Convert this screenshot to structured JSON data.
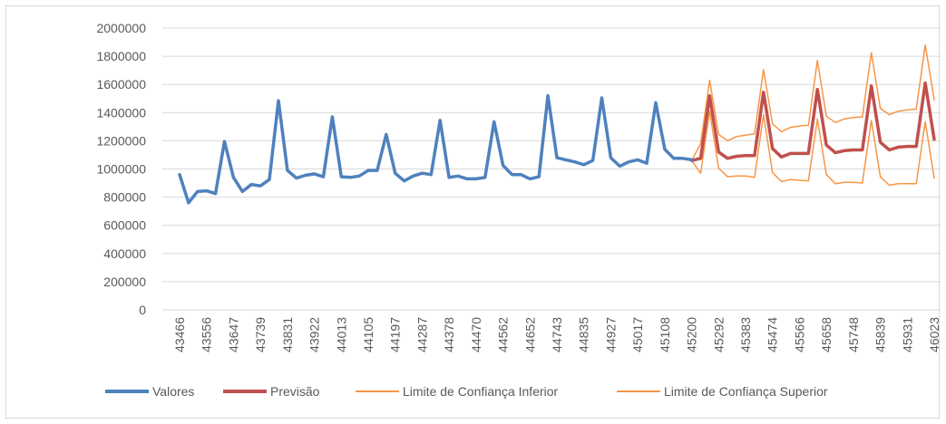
{
  "chart_data": {
    "type": "line",
    "title": "",
    "xlabel": "",
    "ylabel": "",
    "ylim": [
      0,
      2000000
    ],
    "yticks": [
      "0",
      "200000",
      "400000",
      "600000",
      "800000",
      "1000000",
      "1200000",
      "1400000",
      "1600000",
      "1800000",
      "2000000"
    ],
    "xticks": [
      "43466",
      "43556",
      "43647",
      "43739",
      "43831",
      "43922",
      "44013",
      "44105",
      "44197",
      "44287",
      "44378",
      "44470",
      "44562",
      "44652",
      "44743",
      "44835",
      "44927",
      "45017",
      "45108",
      "45200",
      "45292",
      "45383",
      "45474",
      "45566",
      "45658",
      "45748",
      "45839",
      "45931",
      "46023"
    ],
    "grid": true,
    "legend_position": "bottom",
    "series": [
      {
        "name": "Valores",
        "color": "#4f81bd",
        "width": 3.5,
        "start": 0,
        "values": [
          960000,
          760000,
          840000,
          845000,
          825000,
          1195000,
          940000,
          840000,
          890000,
          880000,
          925000,
          1485000,
          990000,
          935000,
          955000,
          965000,
          945000,
          1370000,
          945000,
          940000,
          950000,
          990000,
          990000,
          1245000,
          970000,
          915000,
          950000,
          970000,
          960000,
          1345000,
          940000,
          950000,
          930000,
          930000,
          940000,
          1335000,
          1025000,
          960000,
          960000,
          930000,
          945000,
          1520000,
          1080000,
          1065000,
          1050000,
          1030000,
          1060000,
          1505000,
          1080000,
          1020000,
          1050000,
          1065000,
          1040000,
          1470000,
          1140000,
          1075000,
          1075000,
          1065000
        ]
      },
      {
        "name": "Previsão",
        "color": "#c0504d",
        "width": 3.5,
        "start": 57,
        "values": [
          1060000,
          1075000,
          1520000,
          1120000,
          1075000,
          1090000,
          1095000,
          1095000,
          1545000,
          1145000,
          1085000,
          1110000,
          1110000,
          1110000,
          1565000,
          1170000,
          1115000,
          1130000,
          1135000,
          1135000,
          1590000,
          1190000,
          1135000,
          1155000,
          1160000,
          1160000,
          1610000,
          1210000
        ]
      },
      {
        "name": "Limite de Confiança Inferior",
        "color": "#f79646",
        "width": 1.5,
        "start": 57,
        "values": [
          1060000,
          970000,
          1410000,
          1005000,
          945000,
          950000,
          950000,
          940000,
          1385000,
          975000,
          910000,
          925000,
          920000,
          915000,
          1355000,
          960000,
          895000,
          905000,
          905000,
          900000,
          1345000,
          945000,
          885000,
          895000,
          895000,
          895000,
          1335000,
          935000
        ]
      },
      {
        "name": "Limite de Confiança Superior",
        "color": "#f79646",
        "width": 1.5,
        "start": 57,
        "values": [
          1060000,
          1180000,
          1630000,
          1245000,
          1200000,
          1230000,
          1240000,
          1250000,
          1705000,
          1320000,
          1265000,
          1295000,
          1305000,
          1310000,
          1770000,
          1375000,
          1330000,
          1355000,
          1365000,
          1370000,
          1825000,
          1430000,
          1385000,
          1410000,
          1420000,
          1425000,
          1880000,
          1490000
        ]
      }
    ]
  }
}
